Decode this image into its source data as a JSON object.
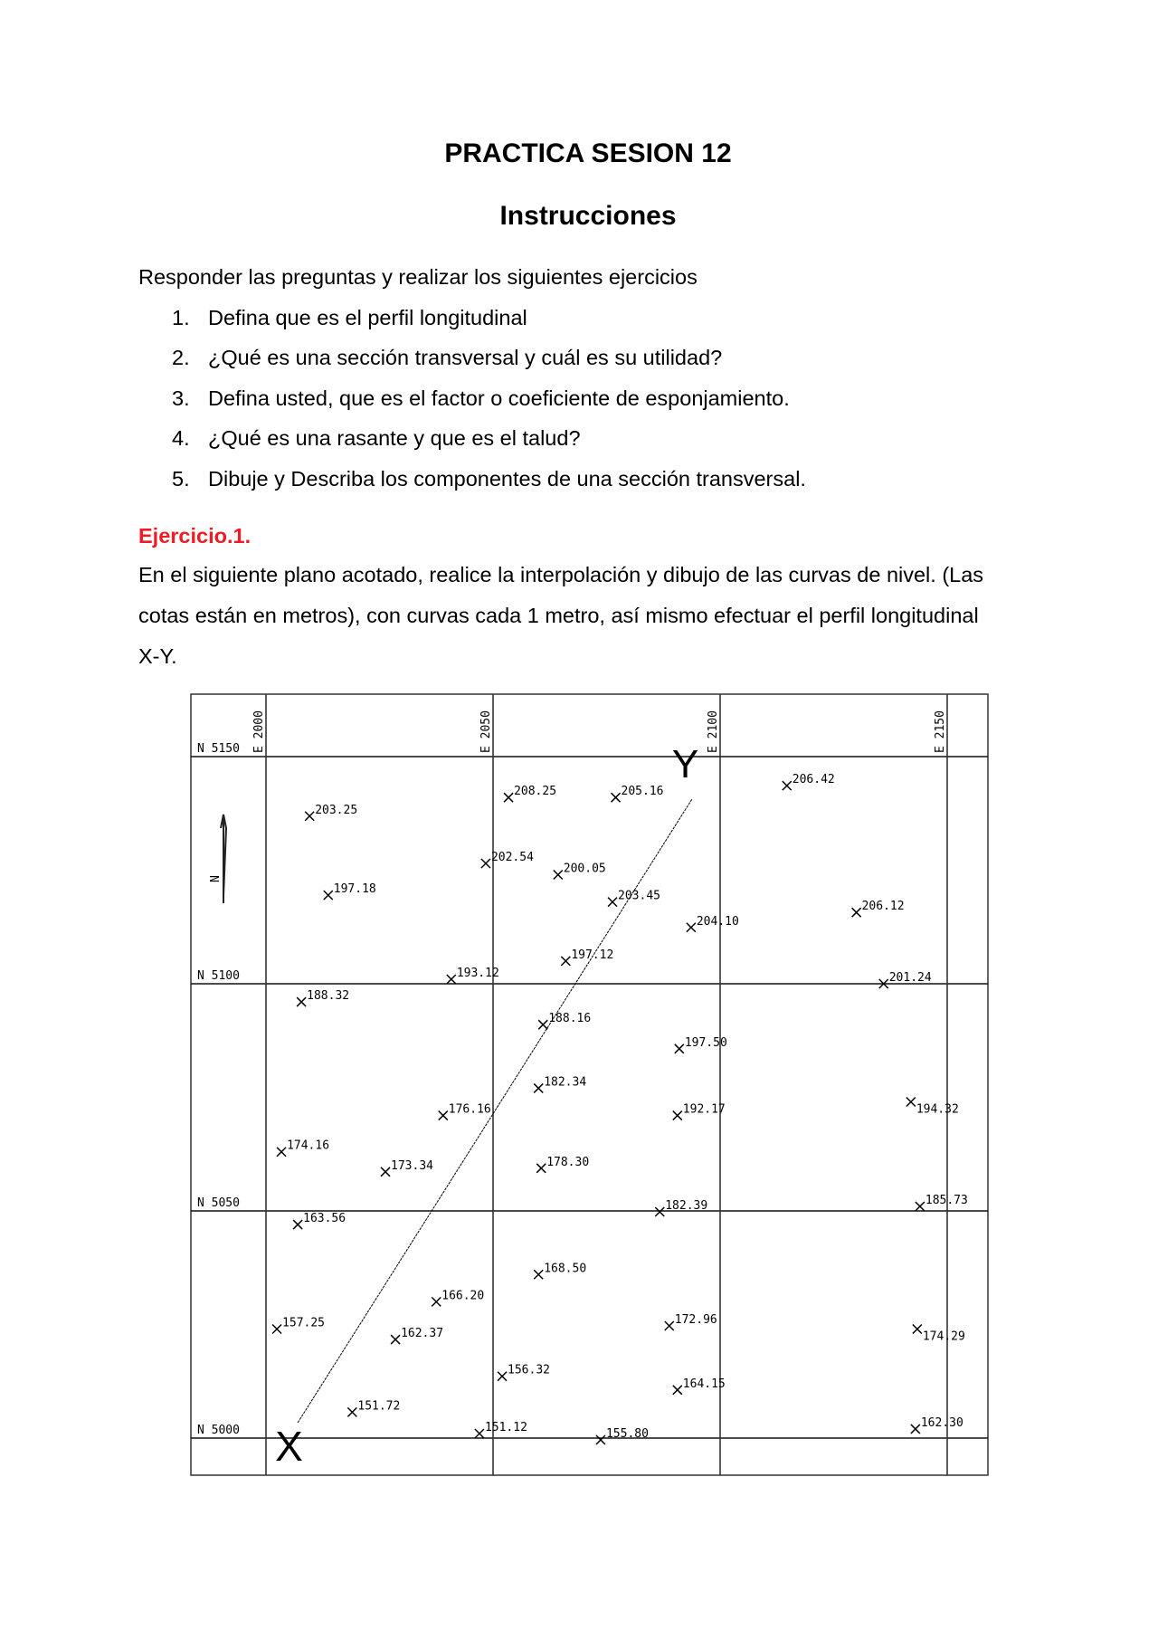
{
  "header": {
    "title": "PRACTICA SESION 12",
    "subtitle": "Instrucciones"
  },
  "intro": "Responder las preguntas y realizar los siguientes ejercicios",
  "questions": [
    {
      "num": "1.",
      "text": "Defina que es el perfil longitudinal"
    },
    {
      "num": "2.",
      "text": "¿Qué es una sección transversal y cuál es su utilidad?"
    },
    {
      "num": "3.",
      "text": "Defina usted, que es el factor o coeficiente de esponjamiento."
    },
    {
      "num": "4.",
      "text": "¿Qué es una rasante y que es el talud?"
    },
    {
      "num": "5.",
      "text": "Dibuje y Describa los componentes de una sección transversal."
    }
  ],
  "exercise": {
    "heading": "Ejercicio.1.",
    "heading_color": "#ee1c24",
    "lines": [
      "En el siguiente plano acotado, realice la interpolación y dibujo de las curvas de nivel. (Las",
      "cotas están en metros), con curvas cada 1 metro, así mismo efectuar el perfil longitudinal",
      "X-Y."
    ]
  },
  "plan": {
    "easting_labels": [
      {
        "value": 2000,
        "label": "E 2000"
      },
      {
        "value": 2050,
        "label": "E 2050"
      },
      {
        "value": 2100,
        "label": "E 2100"
      },
      {
        "value": 2150,
        "label": "E 2150"
      }
    ],
    "northing_labels": [
      {
        "value": 5150,
        "label": "N 5150"
      },
      {
        "value": 5100,
        "label": "N 5100"
      },
      {
        "value": 5050,
        "label": "N 5050"
      },
      {
        "value": 5000,
        "label": "N 5000"
      }
    ],
    "north_arrow_label": "N",
    "profile": {
      "start": {
        "label": "X",
        "E": 2005,
        "N": 4999
      },
      "end": {
        "label": "Y",
        "E": 2093,
        "N": 5147
      }
    },
    "points": [
      {
        "z": "203.25",
        "E": 2009.6,
        "N": 5136.9
      },
      {
        "z": "208.25",
        "E": 2053.4,
        "N": 5141
      },
      {
        "z": "205.16",
        "E": 2077,
        "N": 5141
      },
      {
        "z": "206.42",
        "E": 2114.7,
        "N": 5143.6
      },
      {
        "z": "202.54",
        "E": 2048.4,
        "N": 5126.5
      },
      {
        "z": "200.05",
        "E": 2064.3,
        "N": 5124
      },
      {
        "z": "197.18",
        "E": 2013.7,
        "N": 5119.5
      },
      {
        "z": "203.45",
        "E": 2076.3,
        "N": 5118
      },
      {
        "z": "204.10",
        "E": 2093.6,
        "N": 5112.4
      },
      {
        "z": "206.12",
        "E": 2130,
        "N": 5115.7
      },
      {
        "z": "197.12",
        "E": 2066,
        "N": 5105
      },
      {
        "z": "193.12",
        "E": 2040.8,
        "N": 5101
      },
      {
        "z": "201.24",
        "E": 2136,
        "N": 5100
      },
      {
        "z": "188.32",
        "E": 2007.8,
        "N": 5096
      },
      {
        "z": "188.16",
        "E": 2061,
        "N": 5091
      },
      {
        "z": "197.50",
        "E": 2091,
        "N": 5085.7
      },
      {
        "z": "182.34",
        "E": 2060,
        "N": 5077
      },
      {
        "z": "176.16",
        "E": 2039,
        "N": 5071
      },
      {
        "z": "192.17",
        "E": 2090.6,
        "N": 5071
      },
      {
        "z": "194.32",
        "E": 2142,
        "N": 5074,
        "sub": true
      },
      {
        "z": "174.16",
        "E": 2003.4,
        "N": 5063
      },
      {
        "z": "173.34",
        "E": 2026.3,
        "N": 5058.6
      },
      {
        "z": "178.30",
        "E": 2060.6,
        "N": 5059.4
      },
      {
        "z": "182.39",
        "E": 2086.7,
        "N": 5049.8
      },
      {
        "z": "185.73",
        "E": 2144,
        "N": 5051
      },
      {
        "z": "163.56",
        "E": 2007,
        "N": 5047
      },
      {
        "z": "168.50",
        "E": 2060,
        "N": 5036
      },
      {
        "z": "166.20",
        "E": 2037.5,
        "N": 5030
      },
      {
        "z": "157.25",
        "E": 2002.4,
        "N": 5024
      },
      {
        "z": "162.37",
        "E": 2028.5,
        "N": 5021.7
      },
      {
        "z": "172.96",
        "E": 2088.8,
        "N": 5024.7
      },
      {
        "z": "174.29",
        "E": 2143.4,
        "N": 5024,
        "sub": true
      },
      {
        "z": "156.32",
        "E": 2052,
        "N": 5013.6
      },
      {
        "z": "164.15",
        "E": 2090.6,
        "N": 5010.6
      },
      {
        "z": "151.72",
        "E": 2019,
        "N": 5005.7
      },
      {
        "z": "162.30",
        "E": 2143,
        "N": 5002
      },
      {
        "z": "151.12",
        "E": 2047,
        "N": 5001
      },
      {
        "z": "155.80",
        "E": 2073.7,
        "N": 4999.6
      }
    ]
  }
}
